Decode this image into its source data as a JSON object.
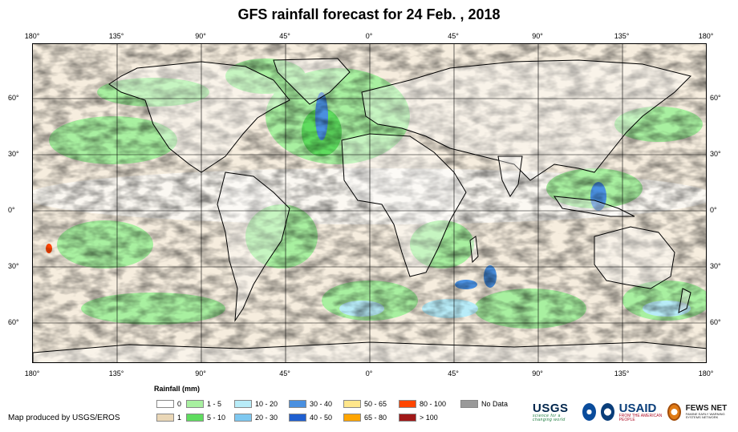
{
  "title": "GFS rainfall forecast for 24 Feb. , 2018",
  "lon_ticks": [
    "180°",
    "135°",
    "90°",
    "45°",
    "0°",
    "45°",
    "90°",
    "135°",
    "180°"
  ],
  "lat_ticks": [
    "60°",
    "30°",
    "0°",
    "30°",
    "60°"
  ],
  "legend": {
    "title": "Rainfall (mm)",
    "items": [
      {
        "label": "0",
        "color": "#ffffff"
      },
      {
        "label": "1",
        "color": "#ead7b7"
      },
      {
        "label": "1 - 5",
        "color": "#a8f0a0"
      },
      {
        "label": "5 - 10",
        "color": "#5fdc5f"
      },
      {
        "label": "10 - 20",
        "color": "#b8ecf8"
      },
      {
        "label": "20 - 30",
        "color": "#7ec8f0"
      },
      {
        "label": "30 - 40",
        "color": "#4a90e0"
      },
      {
        "label": "40 - 50",
        "color": "#1f5fd0"
      },
      {
        "label": "50 - 65",
        "color": "#ffe68a"
      },
      {
        "label": "65 - 80",
        "color": "#ffa500"
      },
      {
        "label": "80 - 100",
        "color": "#ff4500"
      },
      {
        "label": "> 100",
        "color": "#a01818"
      },
      {
        "label": "No Data",
        "color": "#999999"
      }
    ]
  },
  "credit": "Map produced by USGS/EROS",
  "logos": {
    "usgs": "USGS",
    "usgs_tagline": "science for a changing world",
    "usaid": "USAID",
    "usaid_tagline": "FROM THE AMERICAN PEOPLE",
    "fews": "FEWS NET",
    "fews_tagline": "FAMINE EARLY WARNING SYSTEMS NETWORK"
  }
}
